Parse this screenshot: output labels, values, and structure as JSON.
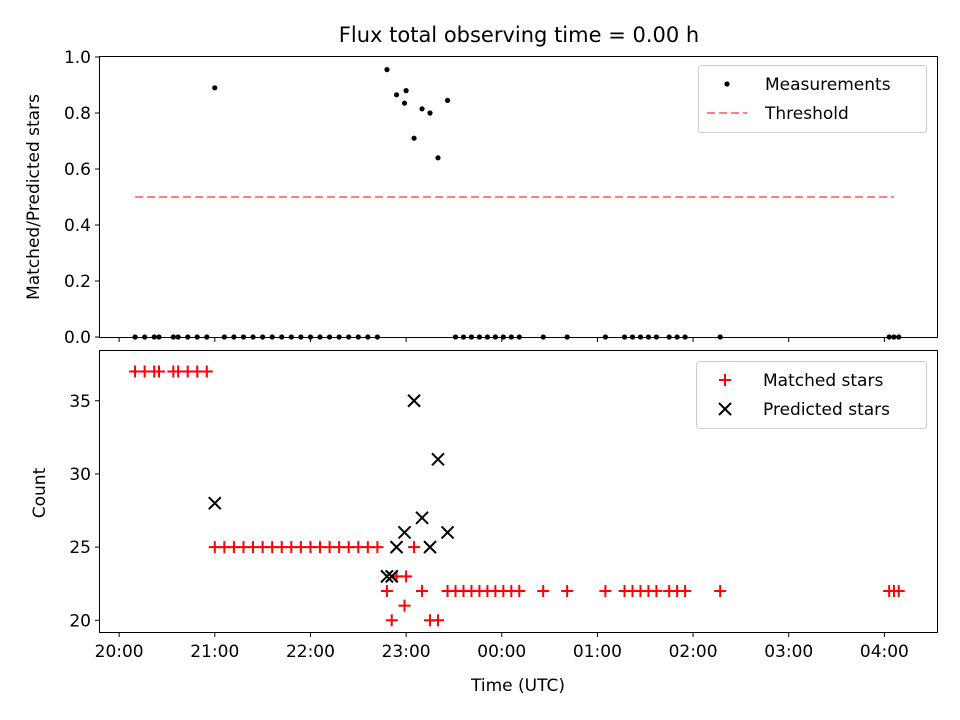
{
  "figure": {
    "title": "Flux total observing time = 0.00 h",
    "xlabel": "Time (UTC)",
    "xtick_labels": [
      "20:00",
      "21:00",
      "22:00",
      "23:00",
      "00:00",
      "01:00",
      "02:00",
      "03:00",
      "04:00"
    ]
  },
  "chart_data": [
    {
      "type": "scatter",
      "ylabel": "Matched/Predicted stars",
      "ylim": [
        0,
        1.0
      ],
      "yticks": [
        0.0,
        0.2,
        0.4,
        0.6,
        0.8,
        1.0
      ],
      "ytick_labels": [
        "0.0",
        "0.2",
        "0.4",
        "0.6",
        "0.8",
        "1.0"
      ],
      "xlim": [
        "19:48",
        "04:33"
      ],
      "legend_position": "top-right",
      "series": [
        {
          "name": "Measurements",
          "kind": "points",
          "color": "#000000",
          "points": [
            {
              "x": "20:10",
              "y": 0.0
            },
            {
              "x": "20:16",
              "y": 0.0
            },
            {
              "x": "20:22",
              "y": 0.0
            },
            {
              "x": "20:25",
              "y": 0.0
            },
            {
              "x": "20:34",
              "y": 0.0
            },
            {
              "x": "20:37",
              "y": 0.0
            },
            {
              "x": "20:43",
              "y": 0.0
            },
            {
              "x": "20:49",
              "y": 0.0
            },
            {
              "x": "20:55",
              "y": 0.0
            },
            {
              "x": "21:00",
              "y": 0.89
            },
            {
              "x": "21:06",
              "y": 0.0
            },
            {
              "x": "21:12",
              "y": 0.0
            },
            {
              "x": "21:18",
              "y": 0.0
            },
            {
              "x": "21:24",
              "y": 0.0
            },
            {
              "x": "21:30",
              "y": 0.0
            },
            {
              "x": "21:36",
              "y": 0.0
            },
            {
              "x": "21:42",
              "y": 0.0
            },
            {
              "x": "21:48",
              "y": 0.0
            },
            {
              "x": "21:54",
              "y": 0.0
            },
            {
              "x": "22:00",
              "y": 0.0
            },
            {
              "x": "22:06",
              "y": 0.0
            },
            {
              "x": "22:12",
              "y": 0.0
            },
            {
              "x": "22:18",
              "y": 0.0
            },
            {
              "x": "22:24",
              "y": 0.0
            },
            {
              "x": "22:30",
              "y": 0.0
            },
            {
              "x": "22:36",
              "y": 0.0
            },
            {
              "x": "22:42",
              "y": 0.0
            },
            {
              "x": "22:48",
              "y": 0.955
            },
            {
              "x": "22:54",
              "y": 0.865
            },
            {
              "x": "22:59",
              "y": 0.835
            },
            {
              "x": "23:00",
              "y": 0.88
            },
            {
              "x": "23:05",
              "y": 0.71
            },
            {
              "x": "23:10",
              "y": 0.815
            },
            {
              "x": "23:15",
              "y": 0.8
            },
            {
              "x": "23:20",
              "y": 0.64
            },
            {
              "x": "23:26",
              "y": 0.845
            },
            {
              "x": "23:31",
              "y": 0.0
            },
            {
              "x": "23:36",
              "y": 0.0
            },
            {
              "x": "23:41",
              "y": 0.0
            },
            {
              "x": "23:46",
              "y": 0.0
            },
            {
              "x": "23:51",
              "y": 0.0
            },
            {
              "x": "23:56",
              "y": 0.0
            },
            {
              "x": "00:01",
              "y": 0.0
            },
            {
              "x": "00:06",
              "y": 0.0
            },
            {
              "x": "00:11",
              "y": 0.0
            },
            {
              "x": "00:26",
              "y": 0.0
            },
            {
              "x": "00:41",
              "y": 0.0
            },
            {
              "x": "01:05",
              "y": 0.0
            },
            {
              "x": "01:17",
              "y": 0.0
            },
            {
              "x": "01:22",
              "y": 0.0
            },
            {
              "x": "01:27",
              "y": 0.0
            },
            {
              "x": "01:32",
              "y": 0.0
            },
            {
              "x": "01:37",
              "y": 0.0
            },
            {
              "x": "01:45",
              "y": 0.0
            },
            {
              "x": "01:50",
              "y": 0.0
            },
            {
              "x": "01:55",
              "y": 0.0
            },
            {
              "x": "02:17",
              "y": 0.0
            },
            {
              "x": "04:03",
              "y": 0.0
            },
            {
              "x": "04:06",
              "y": 0.0
            },
            {
              "x": "04:09",
              "y": 0.0
            }
          ]
        },
        {
          "name": "Threshold",
          "kind": "dashed-line",
          "color": "#ff7f7f",
          "points": [
            {
              "x": "20:10",
              "y": 0.5
            },
            {
              "x": "04:06",
              "y": 0.5
            }
          ]
        }
      ]
    },
    {
      "type": "scatter",
      "ylabel": "Count",
      "ylim": [
        19.2,
        38.4
      ],
      "yticks": [
        20,
        25,
        30,
        35
      ],
      "ytick_labels": [
        "20",
        "25",
        "30",
        "35"
      ],
      "xlim": [
        "19:48",
        "04:33"
      ],
      "legend_position": "top-right",
      "series": [
        {
          "name": "Matched stars",
          "kind": "plus",
          "color": "#ff0000",
          "points": [
            {
              "x": "20:10",
              "y": 37
            },
            {
              "x": "20:16",
              "y": 37
            },
            {
              "x": "20:22",
              "y": 37
            },
            {
              "x": "20:25",
              "y": 37
            },
            {
              "x": "20:34",
              "y": 37
            },
            {
              "x": "20:37",
              "y": 37
            },
            {
              "x": "20:43",
              "y": 37
            },
            {
              "x": "20:49",
              "y": 37
            },
            {
              "x": "20:55",
              "y": 37
            },
            {
              "x": "21:00",
              "y": 25
            },
            {
              "x": "21:06",
              "y": 25
            },
            {
              "x": "21:12",
              "y": 25
            },
            {
              "x": "21:18",
              "y": 25
            },
            {
              "x": "21:24",
              "y": 25
            },
            {
              "x": "21:30",
              "y": 25
            },
            {
              "x": "21:36",
              "y": 25
            },
            {
              "x": "21:42",
              "y": 25
            },
            {
              "x": "21:48",
              "y": 25
            },
            {
              "x": "21:54",
              "y": 25
            },
            {
              "x": "22:00",
              "y": 25
            },
            {
              "x": "22:06",
              "y": 25
            },
            {
              "x": "22:12",
              "y": 25
            },
            {
              "x": "22:18",
              "y": 25
            },
            {
              "x": "22:24",
              "y": 25
            },
            {
              "x": "22:30",
              "y": 25
            },
            {
              "x": "22:36",
              "y": 25
            },
            {
              "x": "22:42",
              "y": 25
            },
            {
              "x": "22:48",
              "y": 22
            },
            {
              "x": "22:51",
              "y": 20
            },
            {
              "x": "22:54",
              "y": 23
            },
            {
              "x": "22:59",
              "y": 21
            },
            {
              "x": "23:00",
              "y": 23
            },
            {
              "x": "23:05",
              "y": 25
            },
            {
              "x": "23:10",
              "y": 22
            },
            {
              "x": "23:15",
              "y": 20
            },
            {
              "x": "23:20",
              "y": 20
            },
            {
              "x": "23:26",
              "y": 22
            },
            {
              "x": "23:31",
              "y": 22
            },
            {
              "x": "23:36",
              "y": 22
            },
            {
              "x": "23:41",
              "y": 22
            },
            {
              "x": "23:46",
              "y": 22
            },
            {
              "x": "23:51",
              "y": 22
            },
            {
              "x": "23:56",
              "y": 22
            },
            {
              "x": "00:01",
              "y": 22
            },
            {
              "x": "00:06",
              "y": 22
            },
            {
              "x": "00:11",
              "y": 22
            },
            {
              "x": "00:26",
              "y": 22
            },
            {
              "x": "00:41",
              "y": 22
            },
            {
              "x": "01:05",
              "y": 22
            },
            {
              "x": "01:17",
              "y": 22
            },
            {
              "x": "01:22",
              "y": 22
            },
            {
              "x": "01:27",
              "y": 22
            },
            {
              "x": "01:32",
              "y": 22
            },
            {
              "x": "01:37",
              "y": 22
            },
            {
              "x": "01:45",
              "y": 22
            },
            {
              "x": "01:50",
              "y": 22
            },
            {
              "x": "01:55",
              "y": 22
            },
            {
              "x": "02:17",
              "y": 22
            },
            {
              "x": "04:03",
              "y": 22
            },
            {
              "x": "04:06",
              "y": 22
            },
            {
              "x": "04:09",
              "y": 22
            }
          ]
        },
        {
          "name": "Predicted stars",
          "kind": "cross",
          "color": "#000000",
          "points": [
            {
              "x": "21:00",
              "y": 28
            },
            {
              "x": "22:48",
              "y": 23
            },
            {
              "x": "22:51",
              "y": 23
            },
            {
              "x": "22:54",
              "y": 25
            },
            {
              "x": "22:59",
              "y": 26
            },
            {
              "x": "23:05",
              "y": 35
            },
            {
              "x": "23:10",
              "y": 27
            },
            {
              "x": "23:15",
              "y": 25
            },
            {
              "x": "23:20",
              "y": 31
            },
            {
              "x": "23:26",
              "y": 26
            }
          ]
        }
      ]
    }
  ]
}
